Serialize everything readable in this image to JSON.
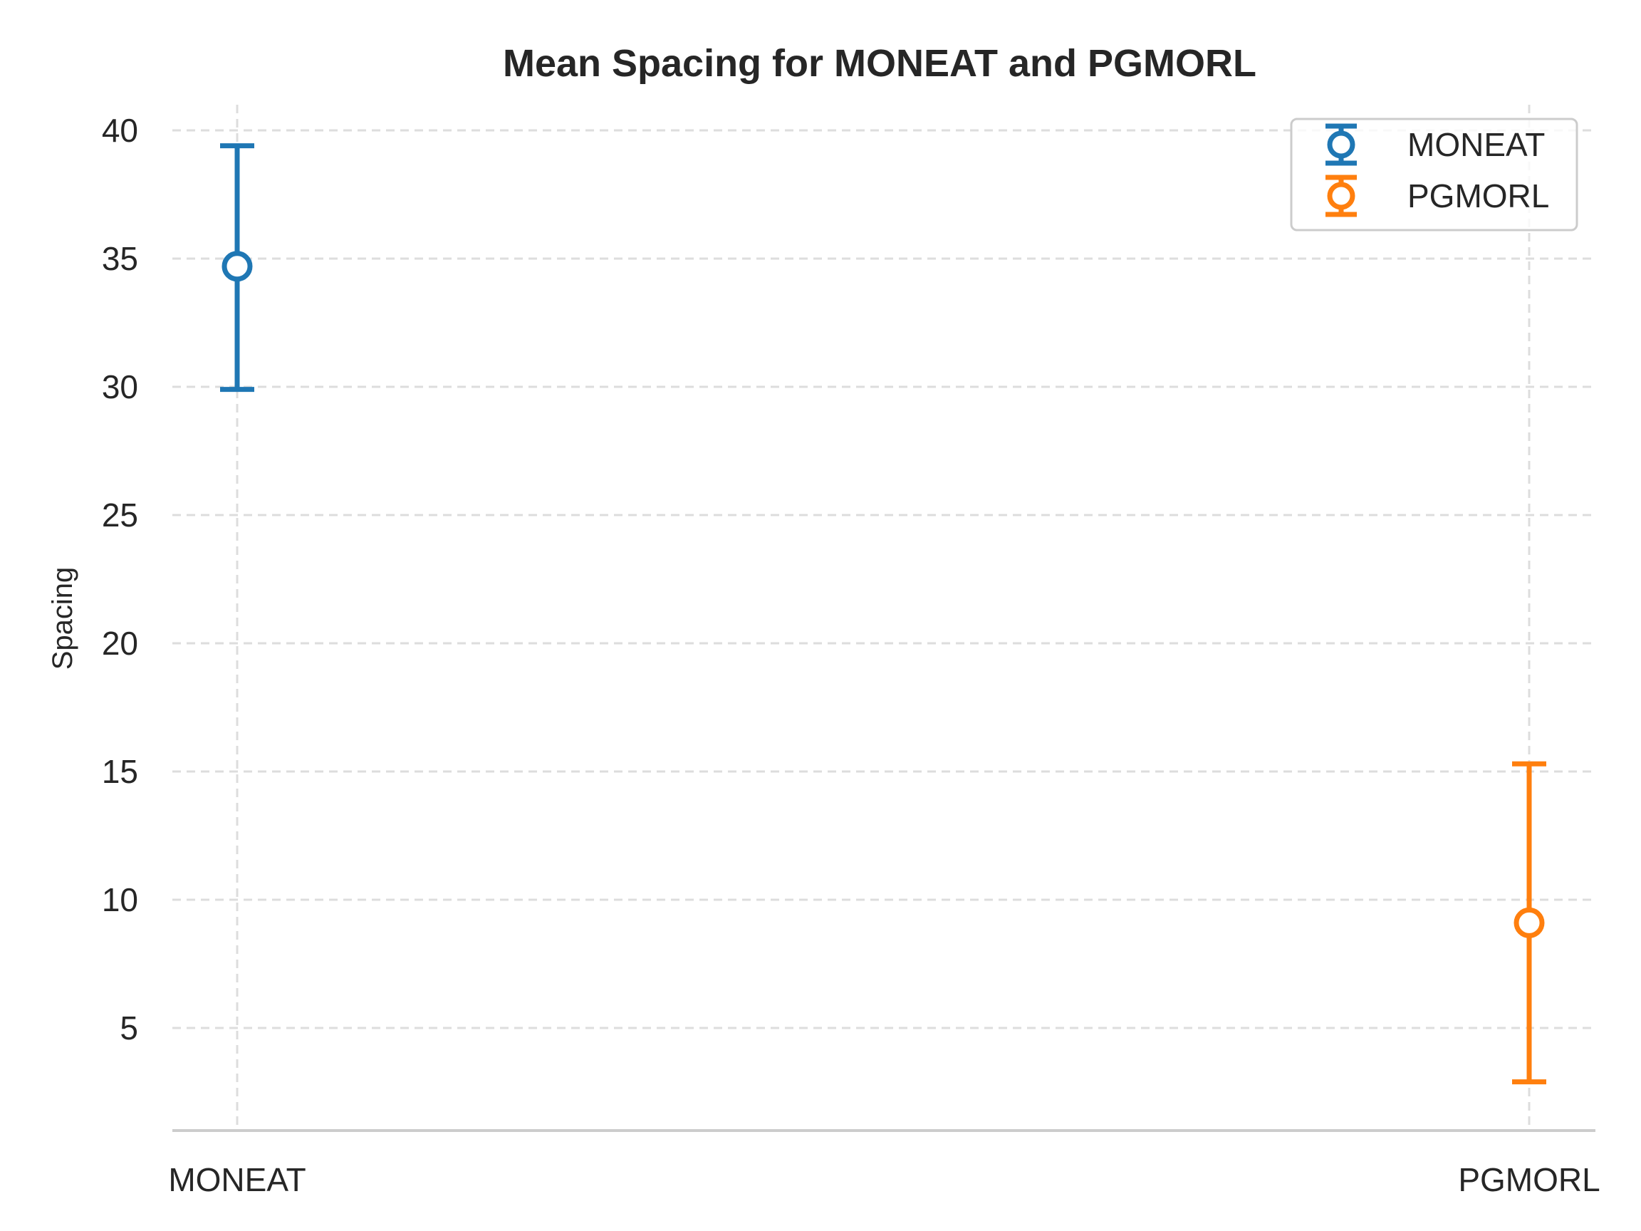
{
  "chart_data": {
    "type": "errorbar",
    "title": "Mean Spacing for MONEAT and PGMORL",
    "xlabel": "",
    "ylabel": "Spacing",
    "categories": [
      "MONEAT",
      "PGMORL"
    ],
    "ylim": [
      1,
      41
    ],
    "yticks": [
      5,
      10,
      15,
      20,
      25,
      30,
      35,
      40
    ],
    "grid": true,
    "legend_position": "top-right",
    "series": [
      {
        "name": "MONEAT",
        "category": "MONEAT",
        "mean": 34.7,
        "lower": 29.9,
        "upper": 39.4,
        "color": "#1f77b4"
      },
      {
        "name": "PGMORL",
        "category": "PGMORL",
        "mean": 9.1,
        "lower": 2.9,
        "upper": 15.3,
        "color": "#ff7f0e"
      }
    ]
  }
}
